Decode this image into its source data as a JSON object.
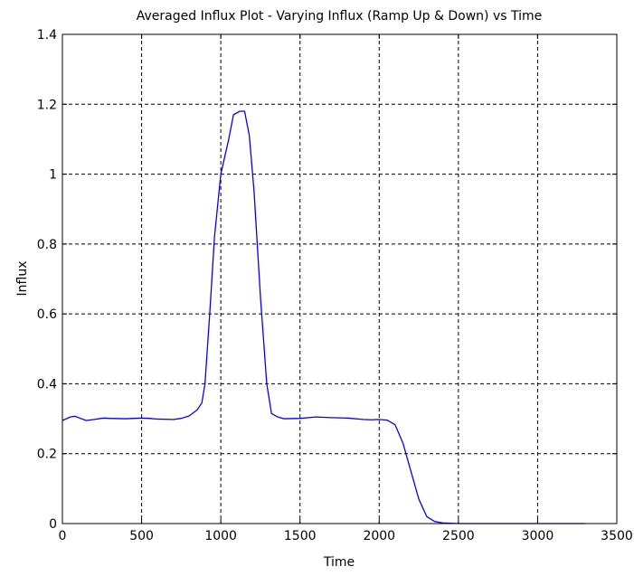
{
  "chart_data": {
    "type": "line",
    "title": "Averaged Influx Plot - Varying Influx (Ramp Up & Down) vs Time",
    "xlabel": "Time",
    "ylabel": "Influx",
    "xlim": [
      0,
      3500
    ],
    "ylim": [
      0,
      1.4
    ],
    "xticks": [
      0,
      500,
      1000,
      1500,
      2000,
      2500,
      3000,
      3500
    ],
    "yticks": [
      0,
      0.2,
      0.4,
      0.6,
      0.8,
      1,
      1.2,
      1.4
    ],
    "xtick_labels": [
      "0",
      "500",
      "1000",
      "1500",
      "2000",
      "2500",
      "3000",
      "3500"
    ],
    "ytick_labels": [
      "0",
      "0.2",
      "0.4",
      "0.6",
      "0.8",
      "1",
      "1.2",
      "1.4"
    ],
    "grid": true,
    "grid_style": "dashed",
    "line_color": "#0000ff",
    "series": [
      {
        "x": [
          0,
          50,
          80,
          120,
          150,
          200,
          260,
          300,
          400,
          500,
          550,
          600,
          700,
          750,
          800,
          850,
          880,
          900,
          930,
          960,
          1000,
          1050,
          1080,
          1120,
          1150,
          1180,
          1210,
          1250,
          1290,
          1320,
          1360,
          1400,
          1500,
          1600,
          1700,
          1800,
          1900,
          1950,
          2000,
          2050,
          2100,
          2150,
          2200,
          2250,
          2300,
          2350,
          2400,
          2450,
          2500,
          2600,
          2800,
          3000,
          3300
        ],
        "y": [
          0.295,
          0.305,
          0.307,
          0.3,
          0.295,
          0.298,
          0.302,
          0.301,
          0.3,
          0.302,
          0.301,
          0.299,
          0.298,
          0.301,
          0.308,
          0.325,
          0.345,
          0.4,
          0.6,
          0.82,
          1.0,
          1.1,
          1.17,
          1.18,
          1.18,
          1.11,
          0.95,
          0.65,
          0.4,
          0.315,
          0.305,
          0.3,
          0.301,
          0.305,
          0.303,
          0.302,
          0.298,
          0.297,
          0.298,
          0.296,
          0.283,
          0.23,
          0.15,
          0.07,
          0.02,
          0.006,
          0.002,
          0.001,
          0.0,
          0.0,
          0.0,
          0.0,
          0.0
        ]
      }
    ]
  }
}
